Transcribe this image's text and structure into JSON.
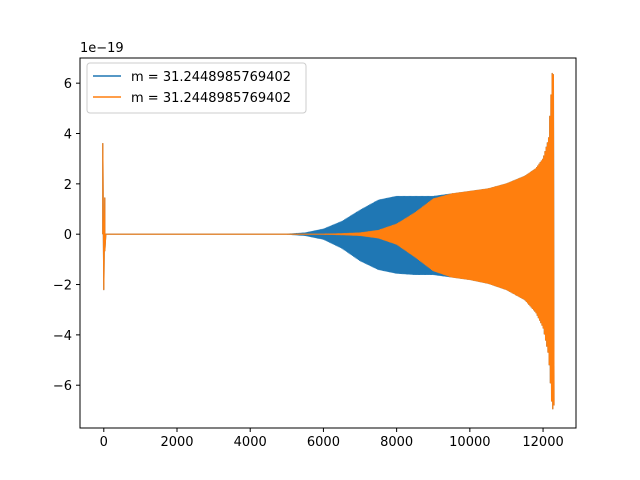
{
  "chart_data": {
    "type": "line",
    "title": "",
    "xlabel": "",
    "ylabel": "",
    "y_offset_label": "1e−19",
    "xlim": [
      -650,
      12900
    ],
    "ylim": [
      -7.7,
      7.0
    ],
    "x_ticks": [
      0,
      2000,
      4000,
      6000,
      8000,
      10000,
      12000
    ],
    "x_tick_labels": [
      "0",
      "2000",
      "4000",
      "6000",
      "8000",
      "10000",
      "12000"
    ],
    "y_ticks": [
      -6,
      -4,
      -2,
      0,
      2,
      4,
      6
    ],
    "y_tick_labels": [
      "−6",
      "−4",
      "−2",
      "0",
      "2",
      "4",
      "6"
    ],
    "grid": false,
    "legend_position": "upper-left",
    "series": [
      {
        "name": "m = 31.2448985769402",
        "color": "#1f77b4",
        "initial_burst": {
          "x": 0,
          "max": 3.6,
          "min": -2.2
        },
        "envelope": {
          "x": [
            0,
            100,
            5000,
            5500,
            6000,
            6500,
            7000,
            7500,
            8000,
            8500,
            9000,
            9500,
            10000,
            10500,
            11000,
            11500,
            11800,
            12000,
            12150,
            12250,
            12300
          ],
          "upper": [
            0,
            0,
            0.0,
            0.05,
            0.2,
            0.5,
            0.95,
            1.35,
            1.5,
            1.5,
            1.5,
            1.6,
            1.7,
            1.8,
            2.0,
            2.3,
            2.6,
            3.0,
            3.8,
            6.4,
            6.3
          ],
          "lower": [
            0,
            0,
            0.0,
            -0.05,
            -0.2,
            -0.55,
            -1.05,
            -1.4,
            -1.55,
            -1.6,
            -1.6,
            -1.7,
            -1.8,
            -1.95,
            -2.2,
            -2.6,
            -3.1,
            -3.7,
            -4.8,
            -7.0,
            -6.8
          ]
        },
        "end_x": 12300
      },
      {
        "name": "m = 31.2448985769402",
        "color": "#ff7f0e",
        "initial_burst": {
          "x": 0,
          "max": 3.6,
          "min": -2.2
        },
        "envelope": {
          "x": [
            0,
            100,
            6000,
            6500,
            7000,
            7500,
            8000,
            8500,
            9000,
            9500,
            10000,
            10500,
            11000,
            11500,
            11800,
            12000,
            12150,
            12250,
            12300
          ],
          "upper": [
            0,
            0,
            0.0,
            0.02,
            0.05,
            0.15,
            0.4,
            0.85,
            1.4,
            1.6,
            1.7,
            1.8,
            2.0,
            2.3,
            2.6,
            3.0,
            3.8,
            6.4,
            6.3
          ],
          "lower": [
            0,
            0,
            0.0,
            -0.02,
            -0.05,
            -0.15,
            -0.4,
            -0.9,
            -1.45,
            -1.7,
            -1.8,
            -1.95,
            -2.2,
            -2.6,
            -3.1,
            -3.7,
            -4.8,
            -7.0,
            -6.8
          ]
        },
        "end_x": 12300
      }
    ]
  }
}
